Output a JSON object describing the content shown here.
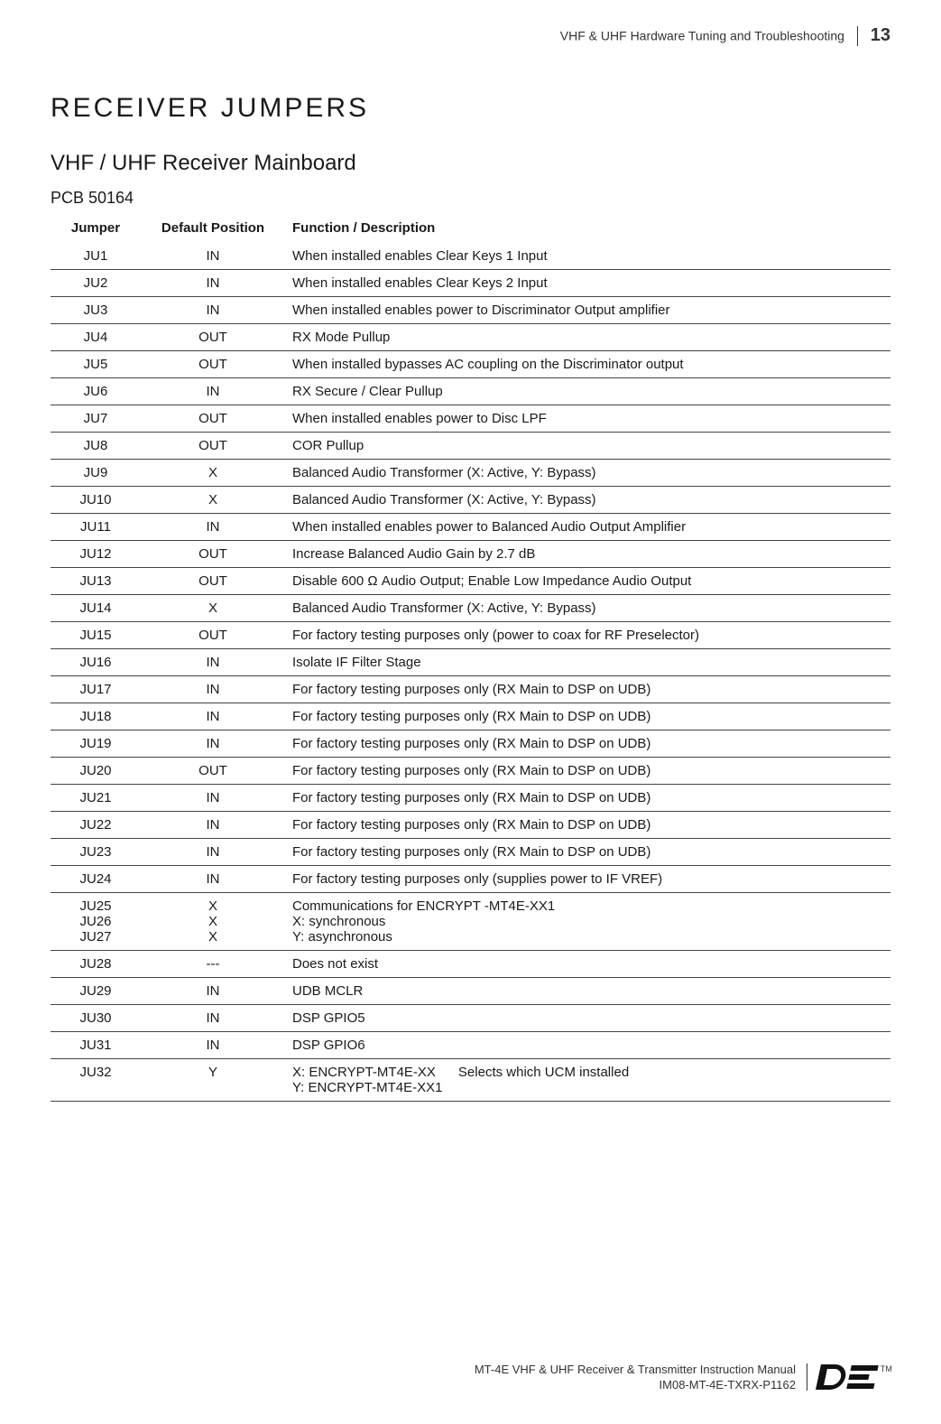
{
  "header": {
    "doc_title": "VHF & UHF Hardware Tuning and Troubleshooting",
    "page_number": "13"
  },
  "section_title": "RECEIVER JUMPERS",
  "subsection_title": "VHF / UHF Receiver Mainboard",
  "pcb_label": "PCB 50164",
  "table": {
    "columns": [
      "Jumper",
      "Default Position",
      "Function / Description"
    ],
    "rows": [
      [
        "JU1",
        "IN",
        "When installed enables Clear Keys 1 Input"
      ],
      [
        "JU2",
        "IN",
        "When installed enables Clear Keys 2 Input"
      ],
      [
        "JU3",
        "IN",
        "When installed enables power to Discriminator Output amplifier"
      ],
      [
        "JU4",
        "OUT",
        "RX Mode Pullup"
      ],
      [
        "JU5",
        "OUT",
        "When installed bypasses AC coupling on the Discriminator output"
      ],
      [
        "JU6",
        "IN",
        "RX Secure / Clear Pullup"
      ],
      [
        "JU7",
        "OUT",
        "When installed enables power to Disc LPF"
      ],
      [
        "JU8",
        "OUT",
        "COR Pullup"
      ],
      [
        "JU9",
        "X",
        "Balanced Audio Transformer (X: Active, Y: Bypass)"
      ],
      [
        "JU10",
        "X",
        "Balanced Audio Transformer (X: Active, Y: Bypass)"
      ],
      [
        "JU11",
        "IN",
        "When installed enables power to Balanced Audio Output Amplifier"
      ],
      [
        "JU12",
        "OUT",
        "Increase Balanced Audio Gain by 2.7 dB"
      ],
      [
        "JU13",
        "OUT",
        "Disable 600 Ω Audio Output; Enable Low Impedance Audio Output"
      ],
      [
        "JU14",
        "X",
        "Balanced Audio Transformer (X: Active, Y: Bypass)"
      ],
      [
        "JU15",
        "OUT",
        "For factory testing purposes only (power to coax for RF Preselector)"
      ],
      [
        "JU16",
        "IN",
        "Isolate IF Filter Stage"
      ],
      [
        "JU17",
        "IN",
        "For factory testing purposes only (RX Main to DSP on UDB)"
      ],
      [
        "JU18",
        "IN",
        "For factory testing purposes only (RX Main to DSP on UDB)"
      ],
      [
        "JU19",
        "IN",
        "For factory testing purposes only (RX Main to DSP on UDB)"
      ],
      [
        "JU20",
        "OUT",
        "For factory testing purposes only (RX Main to DSP on UDB)"
      ],
      [
        "JU21",
        "IN",
        "For factory testing purposes only (RX Main to DSP on UDB)"
      ],
      [
        "JU22",
        "IN",
        "For factory testing purposes only (RX Main to DSP on UDB)"
      ],
      [
        "JU23",
        "IN",
        "For factory testing purposes only (RX Main to DSP on UDB)"
      ],
      [
        "JU24",
        "IN",
        "For factory testing purposes only (supplies power to IF VREF)"
      ],
      [
        "JU25\nJU26\nJU27",
        "X\nX\nX",
        "Communications for ENCRYPT -MT4E-XX1\nX: synchronous\nY: asynchronous"
      ],
      [
        "JU28",
        "---",
        "Does not exist"
      ],
      [
        "JU29",
        "IN",
        "UDB MCLR"
      ],
      [
        "JU30",
        "IN",
        "DSP GPIO5"
      ],
      [
        "JU31",
        "IN",
        "DSP GPIO6"
      ],
      [
        "JU32",
        "Y",
        "X: ENCRYPT-MT4E-XX      Selects which UCM installed\nY: ENCRYPT-MT4E-XX1"
      ]
    ]
  },
  "footer": {
    "line1": "MT-4E VHF & UHF Receiver & Transmitter Instruction Manual",
    "line2": "IM08-MT-4E-TXRX-P1162",
    "tm": "TM"
  }
}
